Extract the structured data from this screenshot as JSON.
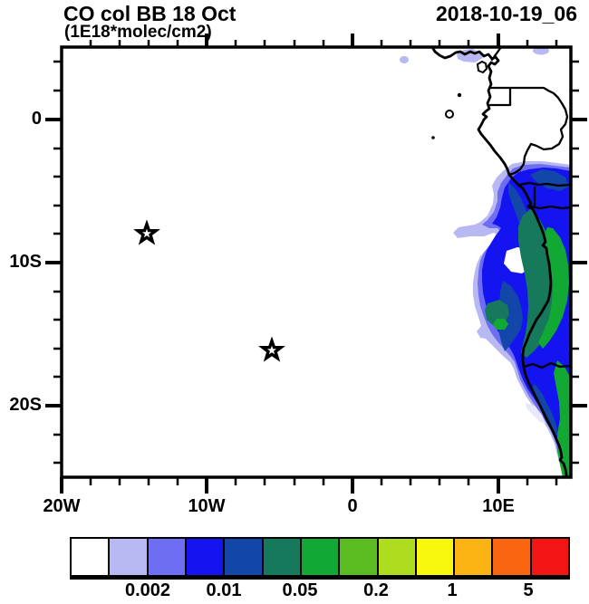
{
  "header": {
    "title": "CO col BB 18 Oct",
    "units": "(1E18*molec/cm2)",
    "datetime": "2018-10-19_06"
  },
  "axes": {
    "x": [
      "20W",
      "10W",
      "0",
      "10E"
    ],
    "y": [
      "0",
      "10S",
      "20S"
    ]
  },
  "colorbar": {
    "colors": [
      "#ffffff",
      "#b8b8f2",
      "#6e6ef2",
      "#1414f0",
      "#1346a9",
      "#16795c",
      "#11a834",
      "#5abc20",
      "#aedc1e",
      "#f8f80e",
      "#fcb414",
      "#f9660f",
      "#f31414"
    ],
    "labels": [
      "0.002",
      "0.01",
      "0.05",
      "0.2",
      "1",
      "5"
    ]
  },
  "chart_data": {
    "type": "heatmap",
    "title": "CO col BB 18 Oct",
    "subtitle_units": "1E18*molec/cm2",
    "timestamp": "2018-10-19_06",
    "x_axis": {
      "ticks": [
        "20W",
        "10W",
        "0",
        "10E"
      ],
      "range_deg": [
        -20,
        15
      ],
      "minor_tick_step_deg": 2
    },
    "y_axis": {
      "ticks": [
        "0",
        "10S",
        "20S"
      ],
      "range_deg": [
        5,
        -25
      ],
      "minor_tick_step_deg": 2
    },
    "contour_levels": [
      0.001,
      0.002,
      0.005,
      0.01,
      0.02,
      0.05,
      0.1,
      0.2,
      0.5,
      1,
      2,
      5
    ],
    "labeled_levels": [
      "0.002",
      "0.01",
      "0.05",
      "0.2",
      "1",
      "5"
    ],
    "palette": [
      "#ffffff",
      "#b8b8f2",
      "#6e6ef2",
      "#1414f0",
      "#1346a9",
      "#16795c",
      "#11a834",
      "#5abc20",
      "#aedc1e",
      "#f8f80e",
      "#fcb414",
      "#f9660f",
      "#f31414"
    ],
    "markers": [
      {
        "type": "star",
        "lon_deg": -14.1,
        "lat_deg": -7.9
      },
      {
        "type": "star",
        "lon_deg": -5.5,
        "lat_deg": -16.1
      }
    ],
    "features": "Filled CO-column plume hugging the Angola/Namibia coast from about 5S to 25S, peak values 0.02-0.1 (teal/green) over land near the coast between 6S and 17S, with a light (0.001-0.002) westward arm near 8S and faint traces along the Gulf of Guinea coast near 4N. Rest of the South Atlantic map area is below 0.001 (white)."
  }
}
